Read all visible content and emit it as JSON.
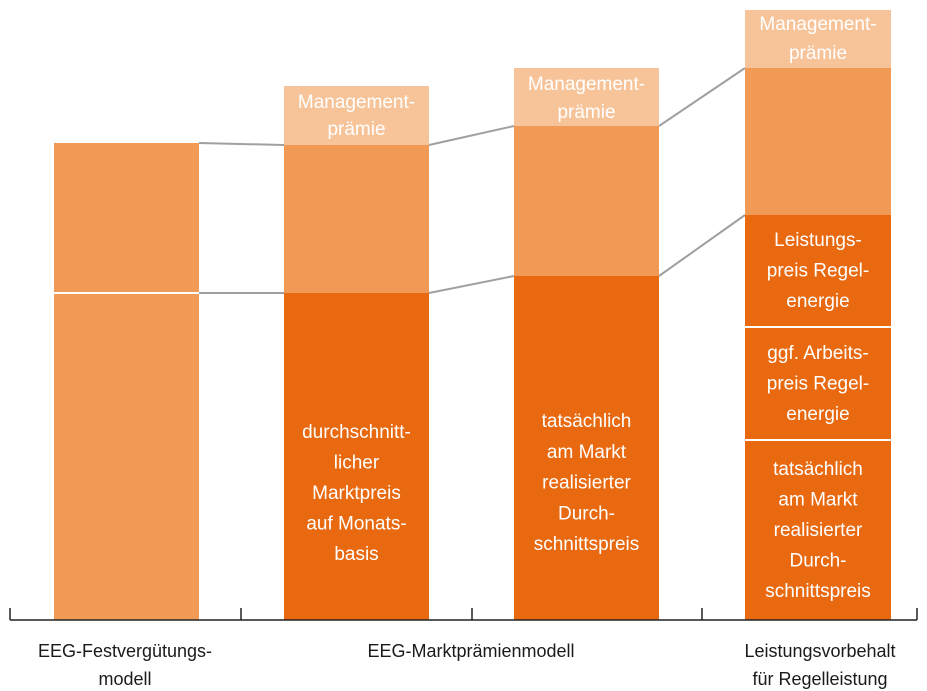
{
  "categories": [
    [
      "EEG-Festvergütungs-",
      "modell"
    ],
    [
      "EEG-Marktprämienmodell"
    ],
    [
      "Leistungsvorbehalt",
      "für Regelleistung"
    ]
  ],
  "bars": [
    {
      "labels": [
        [
          "Management-",
          "prämie"
        ],
        [
          "durchschnitt-",
          "licher",
          "Marktpreis",
          "auf Monats-",
          "basis"
        ]
      ]
    },
    {
      "labels": [
        [
          "Management-",
          "prämie"
        ],
        [
          "tatsächlich",
          "am Markt",
          "realisierter",
          "Durch-",
          "schnittspreis"
        ]
      ]
    },
    {
      "labels": [
        [
          "Management-",
          "prämie"
        ],
        [
          "Leistungs-",
          "preis Regel-",
          "energie"
        ],
        [
          "ggf. Arbeits-",
          "preis Regel-",
          "energie"
        ],
        [
          "tatsächlich",
          "am Markt",
          "realisierter",
          "Durch-",
          "schnittspreis"
        ]
      ]
    }
  ]
}
